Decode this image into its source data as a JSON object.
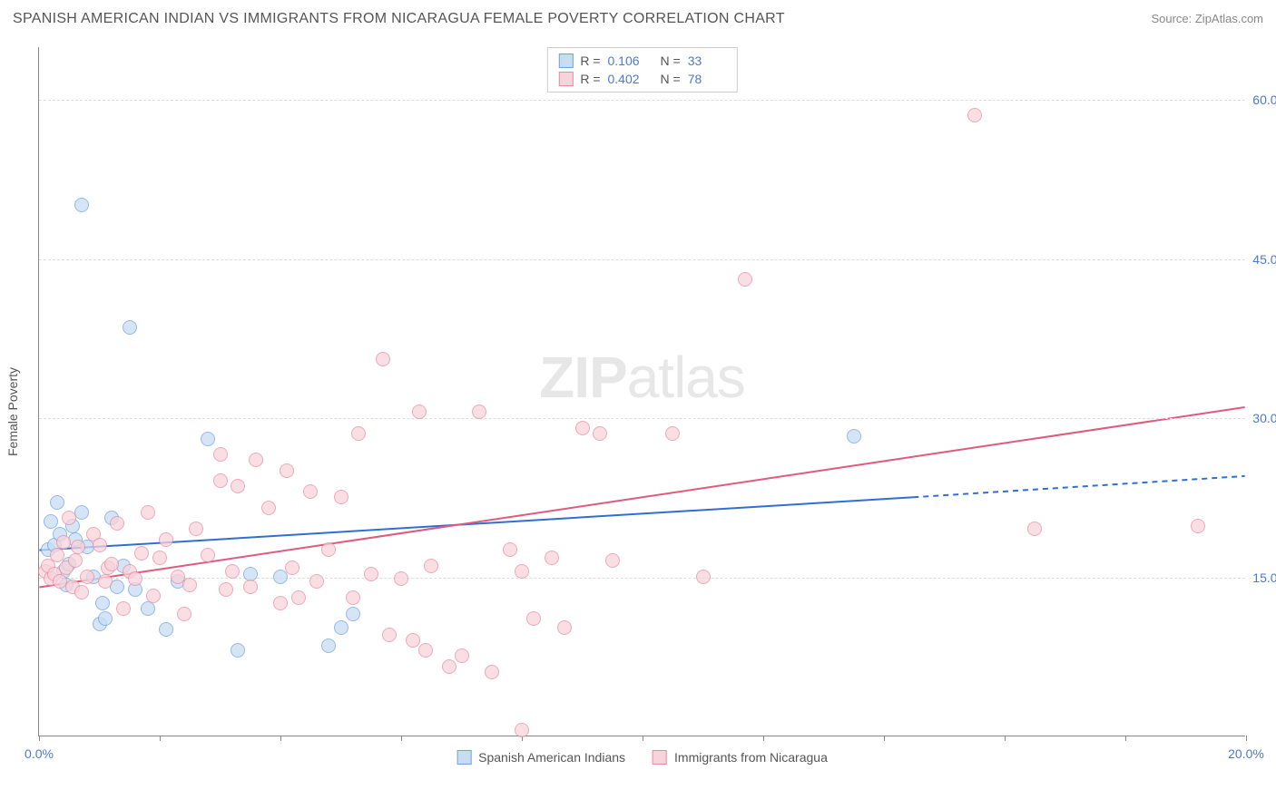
{
  "title": "SPANISH AMERICAN INDIAN VS IMMIGRANTS FROM NICARAGUA FEMALE POVERTY CORRELATION CHART",
  "source": "Source: ZipAtlas.com",
  "watermark_zip": "ZIP",
  "watermark_atlas": "atlas",
  "ylabel": "Female Poverty",
  "chart": {
    "type": "scatter",
    "xlim": [
      0,
      20
    ],
    "ylim": [
      0,
      65
    ],
    "x_ticks": [
      0,
      2,
      4,
      6,
      8,
      10,
      12,
      14,
      16,
      18,
      20
    ],
    "x_tick_labels": {
      "0": "0.0%",
      "20": "20.0%"
    },
    "y_ticks": [
      15,
      30,
      45,
      60
    ],
    "y_tick_labels": {
      "15": "15.0%",
      "30": "30.0%",
      "45": "45.0%",
      "60": "60.0%"
    },
    "background_color": "#ffffff",
    "grid_color": "#dddddd",
    "axis_color": "#888888",
    "tick_label_color": "#4a7bd0",
    "point_radius": 8,
    "series": [
      {
        "key": "series_a",
        "label": "Spanish American Indians",
        "fill": "#c8ddf4",
        "stroke": "#6fa3e0",
        "line_color": "#2f6fd4",
        "r_label": "R =",
        "r_value": "0.106",
        "n_label": "N =",
        "n_value": "33",
        "trend": {
          "x0": 0,
          "y0": 17.5,
          "x1": 14.5,
          "y1": 22.5,
          "dash_x1": 20,
          "dash_y1": 24.5
        },
        "points": [
          [
            0.15,
            17.5
          ],
          [
            0.2,
            20.2
          ],
          [
            0.25,
            18.0
          ],
          [
            0.3,
            22.0
          ],
          [
            0.35,
            19.0
          ],
          [
            0.4,
            15.5
          ],
          [
            0.7,
            50.0
          ],
          [
            0.5,
            16.2
          ],
          [
            0.6,
            18.5
          ],
          [
            0.7,
            21.0
          ],
          [
            0.8,
            17.8
          ],
          [
            0.9,
            15.0
          ],
          [
            1.0,
            10.5
          ],
          [
            1.05,
            12.5
          ],
          [
            1.1,
            11.0
          ],
          [
            1.2,
            20.5
          ],
          [
            1.3,
            14.0
          ],
          [
            1.4,
            16.0
          ],
          [
            1.5,
            38.5
          ],
          [
            1.6,
            13.8
          ],
          [
            1.8,
            12.0
          ],
          [
            2.1,
            10.0
          ],
          [
            2.3,
            14.5
          ],
          [
            2.8,
            28.0
          ],
          [
            3.3,
            8.0
          ],
          [
            3.5,
            15.2
          ],
          [
            4.0,
            15.0
          ],
          [
            4.8,
            8.5
          ],
          [
            5.0,
            10.2
          ],
          [
            5.2,
            11.5
          ],
          [
            0.45,
            14.2
          ],
          [
            0.55,
            19.8
          ],
          [
            13.5,
            28.2
          ]
        ]
      },
      {
        "key": "series_b",
        "label": "Immigrants from Nicaragua",
        "fill": "#f7d3db",
        "stroke": "#e88da1",
        "line_color": "#e05a7d",
        "r_label": "R =",
        "r_value": "0.402",
        "n_label": "N =",
        "n_value": "78",
        "trend": {
          "x0": 0,
          "y0": 14.0,
          "x1": 20,
          "y1": 31.0
        },
        "points": [
          [
            0.1,
            15.5
          ],
          [
            0.15,
            16.0
          ],
          [
            0.2,
            14.8
          ],
          [
            0.25,
            15.2
          ],
          [
            0.3,
            17.0
          ],
          [
            0.35,
            14.5
          ],
          [
            0.4,
            18.2
          ],
          [
            0.45,
            15.8
          ],
          [
            0.5,
            20.5
          ],
          [
            0.55,
            14.0
          ],
          [
            0.6,
            16.5
          ],
          [
            0.65,
            17.8
          ],
          [
            0.7,
            13.5
          ],
          [
            0.8,
            15.0
          ],
          [
            0.9,
            19.0
          ],
          [
            1.0,
            18.0
          ],
          [
            1.1,
            14.5
          ],
          [
            1.15,
            15.8
          ],
          [
            1.2,
            16.2
          ],
          [
            1.3,
            20.0
          ],
          [
            1.4,
            12.0
          ],
          [
            1.5,
            15.5
          ],
          [
            1.6,
            14.8
          ],
          [
            1.7,
            17.2
          ],
          [
            1.8,
            21.0
          ],
          [
            1.9,
            13.2
          ],
          [
            2.0,
            16.8
          ],
          [
            2.1,
            18.5
          ],
          [
            2.3,
            15.0
          ],
          [
            2.4,
            11.5
          ],
          [
            2.5,
            14.2
          ],
          [
            2.6,
            19.5
          ],
          [
            2.8,
            17.0
          ],
          [
            3.0,
            24.0
          ],
          [
            3.1,
            13.8
          ],
          [
            3.2,
            15.5
          ],
          [
            3.3,
            23.5
          ],
          [
            3.5,
            14.0
          ],
          [
            3.6,
            26.0
          ],
          [
            3.8,
            21.5
          ],
          [
            4.0,
            12.5
          ],
          [
            4.1,
            25.0
          ],
          [
            4.2,
            15.8
          ],
          [
            4.5,
            23.0
          ],
          [
            4.6,
            14.5
          ],
          [
            4.8,
            17.5
          ],
          [
            5.0,
            22.5
          ],
          [
            5.2,
            13.0
          ],
          [
            5.3,
            28.5
          ],
          [
            5.5,
            15.2
          ],
          [
            5.7,
            35.5
          ],
          [
            5.8,
            9.5
          ],
          [
            6.0,
            14.8
          ],
          [
            6.3,
            30.5
          ],
          [
            6.4,
            8.0
          ],
          [
            6.5,
            16.0
          ],
          [
            6.8,
            6.5
          ],
          [
            7.0,
            7.5
          ],
          [
            7.3,
            30.5
          ],
          [
            7.5,
            6.0
          ],
          [
            7.8,
            17.5
          ],
          [
            8.0,
            15.5
          ],
          [
            8.2,
            11.0
          ],
          [
            8.5,
            16.8
          ],
          [
            8.0,
            0.5
          ],
          [
            8.7,
            10.2
          ],
          [
            9.0,
            29.0
          ],
          [
            9.3,
            28.5
          ],
          [
            9.5,
            16.5
          ],
          [
            10.5,
            28.5
          ],
          [
            11.0,
            15.0
          ],
          [
            11.7,
            43.0
          ],
          [
            15.5,
            58.5
          ],
          [
            16.5,
            19.5
          ],
          [
            19.2,
            19.8
          ],
          [
            3.0,
            26.5
          ],
          [
            4.3,
            13.0
          ],
          [
            6.2,
            9.0
          ]
        ]
      }
    ]
  }
}
